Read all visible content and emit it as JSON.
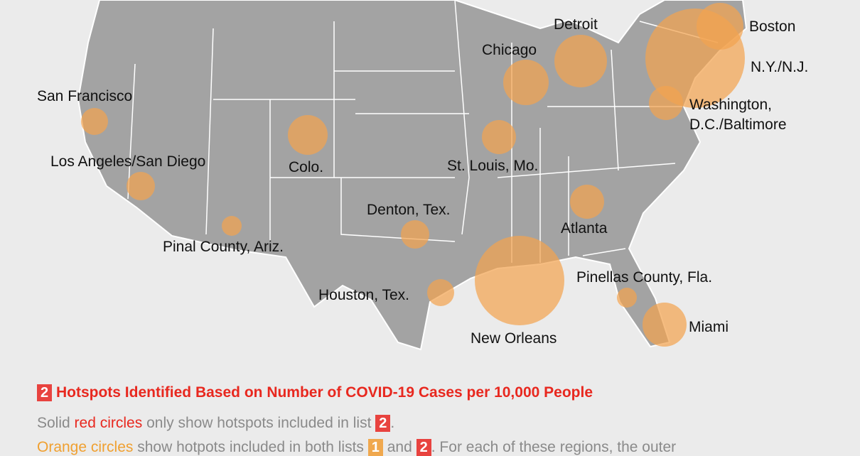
{
  "map": {
    "labels": [
      "San Francisco",
      "Los Angeles/San Diego",
      "Pinal County, Ariz.",
      "Colo.",
      "Denton, Tex.",
      "Houston, Tex.",
      "New Orleans",
      "St. Louis, Mo.",
      "Chicago",
      "Detroit",
      "Boston",
      "N.Y./N.J.",
      "Washington,",
      "D.C./Baltimore",
      "Atlanta",
      "Pinellas County, Fla.",
      "Miami"
    ]
  },
  "legend": {
    "heading_badge": "2",
    "heading": "Hotspots Identified Based on Number of COVID-19 Cases per 10,000 People",
    "line1": {
      "a": "Solid",
      "b": "red circles",
      "c": "only show hotspots included in list",
      "badge": "2",
      "d": "."
    },
    "line2": {
      "a": "Orange circles",
      "b": "show hotpots included in both lists",
      "badge1": "1",
      "c": "and",
      "badge2": "2",
      "d": ". For each of these regions, the outer"
    }
  }
}
